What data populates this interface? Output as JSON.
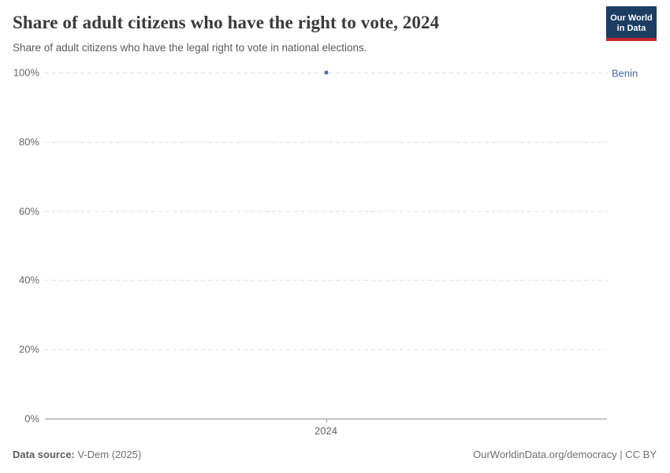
{
  "header": {
    "title": "Share of adult citizens who have the right to vote, 2024",
    "subtitle": "Share of adult citizens who have the legal right to vote in national elections.",
    "logo": {
      "line1": "Our World",
      "line2": "in Data",
      "bg_color": "#1d3d63",
      "accent_color": "#c1272d"
    }
  },
  "chart_data": {
    "type": "scatter",
    "title": "Share of adult citizens who have the right to vote, 2024",
    "xlabel": "",
    "ylabel": "",
    "ylim": [
      0,
      100
    ],
    "grid": true,
    "gridline_style": "dashed",
    "yticks": [
      0,
      20,
      40,
      60,
      80,
      100
    ],
    "ytick_suffix": "%",
    "xticks": [
      "2024"
    ],
    "legend_position": "right-of-plot",
    "series": [
      {
        "name": "Benin",
        "color": "#4868a8",
        "x": [
          2024
        ],
        "values": [
          100
        ]
      }
    ]
  },
  "footer": {
    "datasource_label": "Data source:",
    "datasource_value": " V-Dem (2025)",
    "credit": "OurWorldinData.org/democracy | CC BY"
  }
}
